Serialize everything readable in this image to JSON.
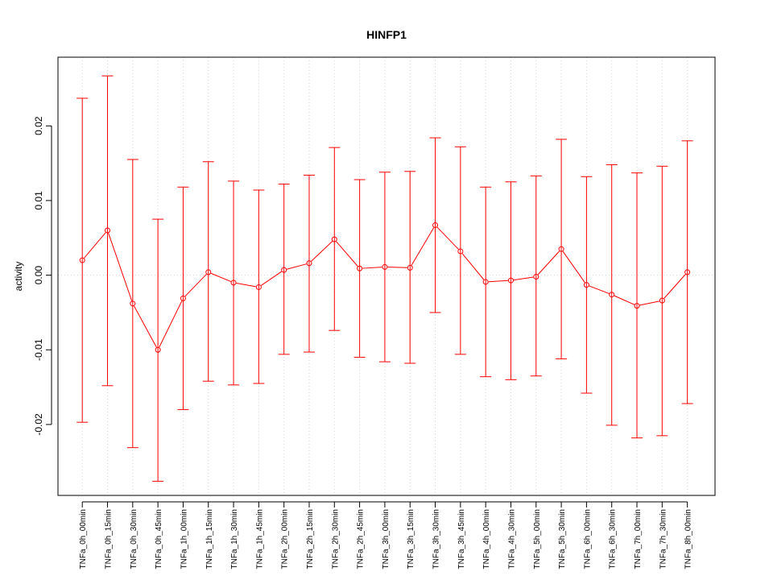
{
  "chart_data": {
    "type": "line",
    "title": "HINFP1",
    "xlabel": "",
    "ylabel": "activity",
    "ylim": [
      -0.0295,
      0.0292
    ],
    "y_ticks": [
      -0.02,
      -0.01,
      0.0,
      0.01,
      0.02
    ],
    "y_tick_labels": [
      "-0.02",
      "-0.01",
      "0.00",
      "0.01",
      "0.02"
    ],
    "grid": true,
    "line_color": "#ff0000",
    "grid_color": "#d3d3d3",
    "categories": [
      "TNFa_0h_00min",
      "TNFa_0h_15min",
      "TNFa_0h_30min",
      "TNFa_0h_45min",
      "TNFa_1h_00min",
      "TNFa_1h_15min",
      "TNFa_1h_30min",
      "TNFa_1h_45min",
      "TNFa_2h_00min",
      "TNFa_2h_15min",
      "TNFa_2h_30min",
      "TNFa_2h_45min",
      "TNFa_3h_00min",
      "TNFa_3h_15min",
      "TNFa_3h_30min",
      "TNFa_3h_45min",
      "TNFa_4h_00min",
      "TNFa_4h_30min",
      "TNFa_5h_00min",
      "TNFa_5h_30min",
      "TNFa_6h_00min",
      "TNFa_6h_30min",
      "TNFa_7h_00min",
      "TNFa_7h_30min",
      "TNFa_8h_00min"
    ],
    "series": [
      {
        "values": [
          0.002,
          0.006,
          -0.0038,
          -0.01,
          -0.0031,
          0.0004,
          -0.001,
          -0.0016,
          0.0007,
          0.0016,
          0.0048,
          0.0009,
          0.0011,
          0.001,
          0.0067,
          0.0032,
          -0.0009,
          -0.0007,
          -0.0002,
          0.0035,
          -0.0013,
          -0.0026,
          -0.0041,
          -0.0034,
          0.0004
        ],
        "upper": [
          0.0237,
          0.0267,
          0.0155,
          0.0075,
          0.0118,
          0.0152,
          0.0126,
          0.0114,
          0.0122,
          0.0134,
          0.0171,
          0.0128,
          0.0138,
          0.0139,
          0.0184,
          0.0172,
          0.0118,
          0.0125,
          0.0133,
          0.0182,
          0.0132,
          0.0148,
          0.0137,
          0.0146,
          0.018
        ],
        "lower": [
          -0.0197,
          -0.0148,
          -0.0231,
          -0.0276,
          -0.018,
          -0.0142,
          -0.0147,
          -0.0145,
          -0.0106,
          -0.0103,
          -0.0074,
          -0.011,
          -0.0116,
          -0.0118,
          -0.005,
          -0.0106,
          -0.0136,
          -0.014,
          -0.0135,
          -0.0112,
          -0.0158,
          -0.0201,
          -0.0218,
          -0.0215,
          -0.0172
        ]
      }
    ]
  }
}
